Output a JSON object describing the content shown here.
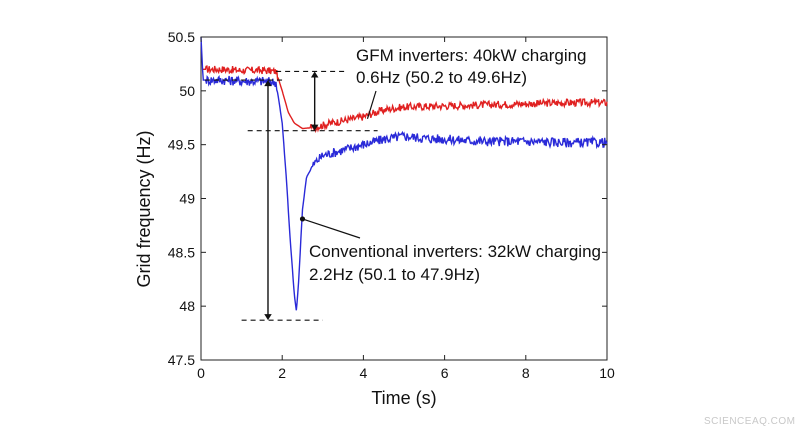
{
  "chart_data": {
    "type": "line",
    "xlabel": "Time (s)",
    "ylabel": "Grid frequency (Hz)",
    "xlim": [
      0,
      10
    ],
    "ylim": [
      47.5,
      50.5
    ],
    "xticks": [
      "0",
      "2",
      "4",
      "6",
      "8",
      "10"
    ],
    "yticks": [
      "50.5",
      "50",
      "49.5",
      "49",
      "48.5",
      "48",
      "47.5"
    ],
    "grid": false,
    "series": [
      {
        "color": "#e02020",
        "x": [
          0.05,
          0.5,
          1.0,
          1.5,
          1.85,
          2.0,
          2.15,
          2.3,
          2.5,
          2.8,
          3.2,
          3.6,
          4.0,
          4.3,
          4.6,
          5.0,
          6.0,
          7.0,
          8.0,
          9.0,
          10.0
        ],
        "y": [
          50.2,
          50.2,
          50.19,
          50.19,
          50.18,
          50.0,
          49.8,
          49.7,
          49.65,
          49.66,
          49.7,
          49.73,
          49.76,
          49.8,
          49.83,
          49.85,
          49.86,
          49.87,
          49.88,
          49.89,
          49.89
        ]
      },
      {
        "color": "#2a2ad8",
        "x": [
          0.0,
          0.05,
          0.1,
          0.5,
          1.0,
          1.5,
          1.85,
          2.0,
          2.1,
          2.2,
          2.3,
          2.35,
          2.4,
          2.5,
          2.6,
          2.8,
          3.0,
          3.5,
          4.0,
          4.5,
          5.0,
          5.5,
          6.0,
          7.0,
          8.0,
          9.0,
          10.0
        ],
        "y": [
          50.5,
          50.1,
          50.1,
          50.1,
          50.09,
          50.09,
          50.08,
          49.7,
          49.2,
          48.6,
          48.1,
          47.95,
          48.2,
          48.9,
          49.2,
          49.33,
          49.4,
          49.45,
          49.5,
          49.55,
          49.58,
          49.56,
          49.55,
          49.53,
          49.53,
          49.52,
          49.52
        ]
      }
    ],
    "annotations": [
      {
        "line1": "GFM inverters: 40kW charging",
        "line2": "0.6Hz (50.2 to 49.6Hz)"
      },
      {
        "line1": "Conventional inverters: 32kW charging",
        "line2": "2.2Hz (50.1 to 47.9Hz)"
      }
    ]
  },
  "watermark": "SCIENCEAQ.COM"
}
